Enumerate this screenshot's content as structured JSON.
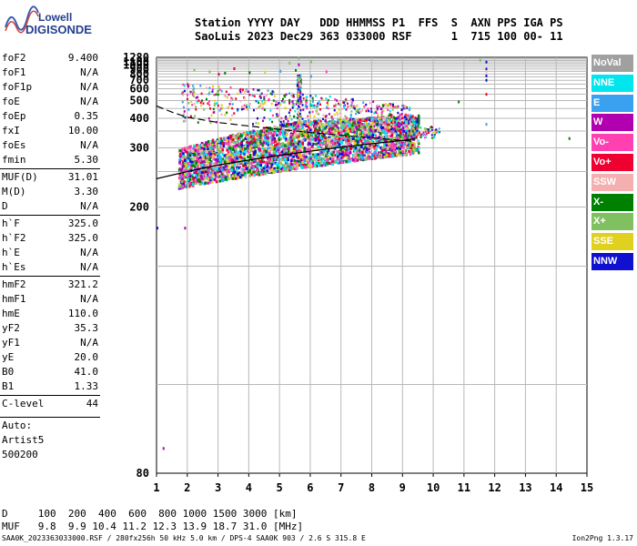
{
  "logo": {
    "line1": "Lowell",
    "line2": "DIGISONDE"
  },
  "header": {
    "row1": "Station YYYY DAY   DDD HHMMSS P1  FFS  S  AXN PPS IGA PS",
    "row2": "SaoLuis 2023 Dec29 363 033000 RSF      1  715 100 00- 11"
  },
  "params": [
    {
      "label": "foF2",
      "value": "9.400"
    },
    {
      "label": "foF1",
      "value": "N/A"
    },
    {
      "label": "foF1p",
      "value": "N/A"
    },
    {
      "label": "foE",
      "value": "N/A"
    },
    {
      "label": "foEp",
      "value": "0.35"
    },
    {
      "label": "fxI",
      "value": "10.00"
    },
    {
      "label": "foEs",
      "value": "N/A"
    },
    {
      "label": "fmin",
      "value": "5.30"
    },
    {
      "label": "MUF(D)",
      "value": "31.01"
    },
    {
      "label": "M(D)",
      "value": "3.30"
    },
    {
      "label": "D",
      "value": "N/A"
    },
    {
      "label": "h`F",
      "value": "325.0"
    },
    {
      "label": "h`F2",
      "value": "325.0"
    },
    {
      "label": "h`E",
      "value": "N/A"
    },
    {
      "label": "h`Es",
      "value": "N/A"
    },
    {
      "label": "hmF2",
      "value": "321.2"
    },
    {
      "label": "hmF1",
      "value": "N/A"
    },
    {
      "label": "hmE",
      "value": "110.0"
    },
    {
      "label": "yF2",
      "value": "35.3"
    },
    {
      "label": "yF1",
      "value": "N/A"
    },
    {
      "label": "yE",
      "value": "20.0"
    },
    {
      "label": "B0",
      "value": "41.0"
    },
    {
      "label": "B1",
      "value": "1.33"
    },
    {
      "label": "C-level",
      "value": "44"
    }
  ],
  "notes": [
    "Auto:",
    "Artist5",
    "500200"
  ],
  "legend": [
    {
      "label": "NoVal",
      "color": "#a0a0a0"
    },
    {
      "label": "NNE",
      "color": "#00e5ee"
    },
    {
      "label": "E",
      "color": "#3aa0f0"
    },
    {
      "label": "W",
      "color": "#b000b0"
    },
    {
      "label": "Vo-",
      "color": "#ff40b0"
    },
    {
      "label": "Vo+",
      "color": "#ee0030"
    },
    {
      "label": "SSW",
      "color": "#f4b0b0"
    },
    {
      "label": "X-",
      "color": "#008000"
    },
    {
      "label": "X+",
      "color": "#80c060"
    },
    {
      "label": "SSE",
      "color": "#e0d020"
    },
    {
      "label": "NNW",
      "color": "#1010d0"
    }
  ],
  "bottom": {
    "d_row": "D     100  200  400  600  800 1000 1500 3000 [km]",
    "muf_row": "MUF   9.8  9.9 10.4 11.2 12.3 13.9 18.7 31.0 [MHz]"
  },
  "footer": {
    "left": "SAA0K_2023363033000.RSF / 280fx256h 50 kHz 5.0 km / DPS-4 SAA0K 903 / 2.6 S 315.8 E",
    "right": "Ion2Png 1.3.17"
  },
  "chart_data": {
    "type": "scatter",
    "xlim": [
      1,
      15
    ],
    "x_ticks": [
      1,
      2,
      3,
      4,
      5,
      6,
      7,
      8,
      9,
      10,
      11,
      12,
      13,
      14,
      15
    ],
    "y_ticks": [
      80,
      200,
      300,
      400,
      500,
      600,
      700,
      800,
      900,
      1000,
      1100,
      1280
    ],
    "ylim": [
      80,
      1280
    ],
    "y_scale": "reciprocal",
    "xlabel": "",
    "ylabel": "",
    "grid": true,
    "trace_profile": [
      [
        1.0,
        238
      ],
      [
        2.0,
        250
      ],
      [
        3.0,
        262
      ],
      [
        4.0,
        272
      ],
      [
        5.0,
        282
      ],
      [
        6.0,
        292
      ],
      [
        7.0,
        302
      ],
      [
        8.0,
        311
      ],
      [
        9.0,
        320
      ],
      [
        9.4,
        325
      ]
    ],
    "dashed_trace": [
      [
        1.0,
        465
      ],
      [
        1.5,
        430
      ],
      [
        2.0,
        405
      ],
      [
        3.0,
        382
      ],
      [
        4.0,
        368
      ],
      [
        5.0,
        356
      ],
      [
        6.0,
        345
      ],
      [
        7.0,
        336
      ],
      [
        8.0,
        328
      ],
      [
        9.0,
        320
      ],
      [
        9.4,
        318
      ]
    ],
    "echo_band": {
      "x_range": [
        1.7,
        9.5
      ],
      "h_low": [
        [
          1.7,
          225
        ],
        [
          9.5,
          290
        ]
      ],
      "h_high": [
        [
          1.7,
          300
        ],
        [
          5.5,
          390
        ],
        [
          9.5,
          420
        ]
      ]
    },
    "extra_echoes": [
      [
        1.0,
        180
      ],
      [
        1.2,
        85
      ],
      [
        1.9,
        180
      ],
      [
        2.2,
        910
      ],
      [
        2.7,
        870
      ],
      [
        3.0,
        820
      ],
      [
        3.2,
        840
      ],
      [
        3.5,
        940
      ],
      [
        4.0,
        850
      ],
      [
        4.5,
        860
      ],
      [
        5.0,
        880
      ],
      [
        5.3,
        1110
      ],
      [
        5.5,
        900
      ],
      [
        5.6,
        1050
      ],
      [
        5.6,
        1290
      ],
      [
        6.0,
        1150
      ],
      [
        6.0,
        780
      ],
      [
        6.5,
        870
      ],
      [
        10.8,
        500
      ],
      [
        11.5,
        1220
      ],
      [
        11.7,
        1140
      ],
      [
        11.7,
        930
      ],
      [
        11.7,
        880
      ],
      [
        11.7,
        790
      ],
      [
        11.7,
        720
      ],
      [
        11.7,
        560
      ],
      [
        11.7,
        380
      ],
      [
        14.4,
        330
      ]
    ]
  }
}
